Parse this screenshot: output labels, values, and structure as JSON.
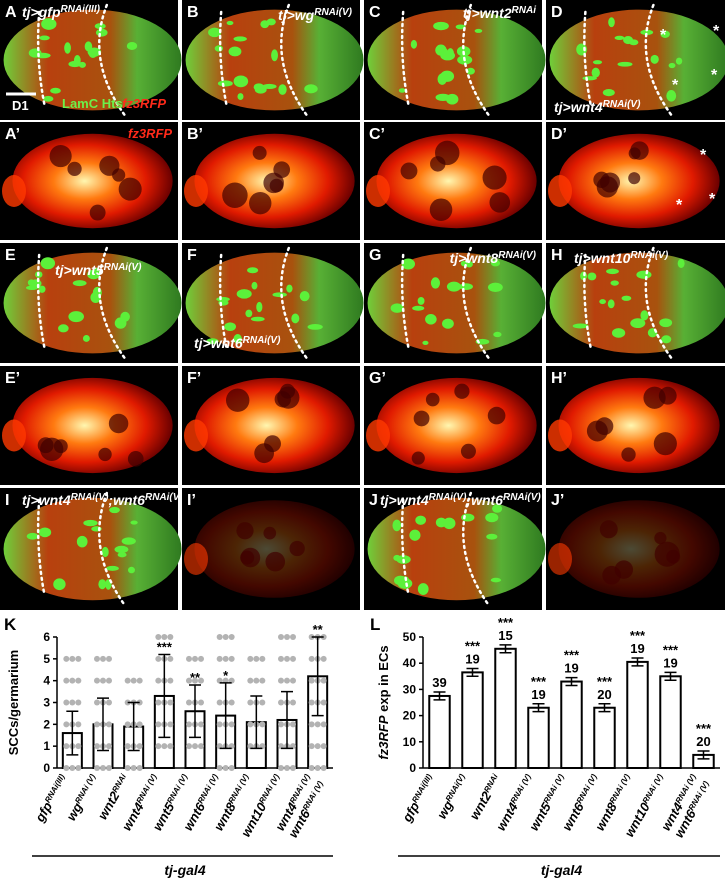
{
  "figure": {
    "image_panels": [
      {
        "letter": "A",
        "genotype": [
          {
            "text": "tj>gfp"
          },
          {
            "sup": "RNAi(III)"
          }
        ]
      },
      {
        "letter": "B",
        "genotype": [
          {
            "text": "tj>wg"
          },
          {
            "sup": "RNAi(V)"
          }
        ]
      },
      {
        "letter": "C",
        "genotype": [
          {
            "text": "tj>wnt2"
          },
          {
            "sup": "RNAi"
          }
        ]
      },
      {
        "letter": "D",
        "genotype": [
          {
            "text": "tj>wnt4"
          },
          {
            "sup": "RNAi(V)"
          }
        ],
        "asterisks": [
          "*",
          "*",
          "*",
          "*"
        ]
      },
      {
        "letter": "A’"
      },
      {
        "letter": "B’"
      },
      {
        "letter": "C’"
      },
      {
        "letter": "D’",
        "asterisks": [
          "*",
          "*",
          "*"
        ]
      },
      {
        "letter": "E",
        "genotype": [
          {
            "text": "tj>wnt5"
          },
          {
            "sup": "RNAi(V)"
          }
        ]
      },
      {
        "letter": "F",
        "genotype": [
          {
            "text": "tj>wnt6"
          },
          {
            "sup": "RNAi(V)"
          }
        ]
      },
      {
        "letter": "G",
        "genotype": [
          {
            "text": "tj>wnt8"
          },
          {
            "sup": "RNAi(V)"
          }
        ]
      },
      {
        "letter": "H",
        "genotype": [
          {
            "text": "tj>wnt10"
          },
          {
            "sup": "RNAi(V)"
          }
        ]
      },
      {
        "letter": "E’"
      },
      {
        "letter": "F’"
      },
      {
        "letter": "G’"
      },
      {
        "letter": "H’"
      },
      {
        "letter": "I",
        "genotype": [
          {
            "text": "tj>wnt4"
          },
          {
            "sup": "RNAi(V)"
          },
          {
            "text": ";wnt6"
          },
          {
            "sup": "RNAi(V)"
          }
        ]
      },
      {
        "letter": "I’"
      },
      {
        "letter": "J",
        "genotype": [
          {
            "text": "tj>wnt4"
          },
          {
            "sup": "RNAi(V)"
          },
          {
            "text": ";wnt6"
          },
          {
            "sup": "RNAi(V)"
          }
        ]
      },
      {
        "letter": "J’"
      }
    ],
    "merge_labels": {
      "channel_green": "LamC Hts",
      "channel_red": "fz3RFP",
      "scale_bar": "D1"
    },
    "red_label": "fz3RFP"
  },
  "chart_data": [
    {
      "type": "bar",
      "panel_letter": "K",
      "ylabel": [
        {
          "text": "SCCs/germarium"
        }
      ],
      "categories": [
        [
          [
            {
              "text": "gfp"
            },
            {
              "sup": "RNAi(III)"
            }
          ]
        ],
        [
          [
            {
              "text": "wg"
            },
            {
              "sup": "RNAi (V)"
            }
          ]
        ],
        [
          [
            {
              "text": "wnt2"
            },
            {
              "sup": "RNAi"
            }
          ]
        ],
        [
          [
            {
              "text": "wnt4"
            },
            {
              "sup": "RNAi (V)"
            }
          ]
        ],
        [
          [
            {
              "text": "wnt5"
            },
            {
              "sup": "RNAi (V)"
            }
          ]
        ],
        [
          [
            {
              "text": "wnt6"
            },
            {
              "sup": "RNAi (V)"
            }
          ]
        ],
        [
          [
            {
              "text": "wnt8"
            },
            {
              "sup": "RNAi (V)"
            }
          ]
        ],
        [
          [
            {
              "text": "wnt10"
            },
            {
              "sup": "RNAi (V)"
            }
          ]
        ],
        [
          [
            {
              "text": "wnt4"
            },
            {
              "sup": "RNAi (V)"
            }
          ],
          [
            {
              "text": "wnt6"
            },
            {
              "sup": "RNAi (V)"
            }
          ]
        ]
      ],
      "values": [
        1.6,
        2.0,
        1.9,
        3.3,
        2.6,
        2.4,
        2.1,
        2.2,
        4.2
      ],
      "errors": [
        1.0,
        1.2,
        1.1,
        1.9,
        1.2,
        1.5,
        1.2,
        1.3,
        1.8
      ],
      "significance": [
        null,
        null,
        null,
        "***",
        "**",
        "*",
        null,
        null,
        "**"
      ],
      "points": [
        [
          0,
          1,
          2,
          3,
          4,
          5
        ],
        [
          0,
          1,
          2,
          3,
          4,
          5
        ],
        [
          0,
          1,
          2,
          3,
          4
        ],
        [
          1,
          2,
          3,
          4,
          5,
          6
        ],
        [
          1,
          2,
          3,
          4,
          5
        ],
        [
          0,
          1,
          2,
          3,
          4,
          5,
          6
        ],
        [
          1,
          2,
          3,
          4,
          5
        ],
        [
          0,
          1,
          2,
          3,
          4,
          5,
          6
        ],
        [
          0,
          1,
          2,
          3,
          4,
          5,
          6
        ]
      ],
      "point_color": "#b3b3b3",
      "color": "#ffffff",
      "ylim": [
        0,
        6
      ],
      "yticks": [
        0,
        1,
        2,
        3,
        4,
        5,
        6
      ],
      "group_label": "tj-gal4"
    },
    {
      "type": "bar",
      "panel_letter": "L",
      "ylabel": [
        {
          "text": "fz3RFP",
          "style": "italic"
        },
        {
          "text": " exp in ECs"
        }
      ],
      "categories": [
        [
          [
            {
              "text": "gfp"
            },
            {
              "sup": "RNAi(III)"
            }
          ]
        ],
        [
          [
            {
              "text": "wg"
            },
            {
              "sup": "RNAi(V)"
            }
          ]
        ],
        [
          [
            {
              "text": "wnt2"
            },
            {
              "sup": "RNAi"
            }
          ]
        ],
        [
          [
            {
              "text": "wnt4"
            },
            {
              "sup": "RNAi (V)"
            }
          ]
        ],
        [
          [
            {
              "text": "wnt5"
            },
            {
              "sup": "RNAi (V)"
            }
          ]
        ],
        [
          [
            {
              "text": "wnt6"
            },
            {
              "sup": "RNAi (V)"
            }
          ]
        ],
        [
          [
            {
              "text": "wnt8"
            },
            {
              "sup": "RNAi (V)"
            }
          ]
        ],
        [
          [
            {
              "text": "wnt10"
            },
            {
              "sup": "RNAi (V)"
            }
          ]
        ],
        [
          [
            {
              "text": "wnt4"
            },
            {
              "sup": "RNAi (V)"
            }
          ],
          [
            {
              "text": "wnt6"
            },
            {
              "sup": "RNAi (V)"
            }
          ]
        ]
      ],
      "values": [
        27.5,
        36.5,
        45.5,
        23,
        33,
        23,
        40.5,
        35,
        5
      ],
      "errors": [
        1.5,
        1.5,
        1.5,
        1.5,
        1.5,
        1.5,
        1.5,
        1.5,
        1.5
      ],
      "significance": [
        null,
        "***",
        "***",
        "***",
        "***",
        "***",
        "***",
        "***",
        "***"
      ],
      "n": [
        39,
        19,
        15,
        19,
        19,
        20,
        19,
        19,
        20
      ],
      "color": "#ffffff",
      "ylim": [
        0,
        50
      ],
      "yticks": [
        0,
        10,
        20,
        30,
        40,
        50
      ],
      "group_label": "tj-gal4"
    }
  ]
}
